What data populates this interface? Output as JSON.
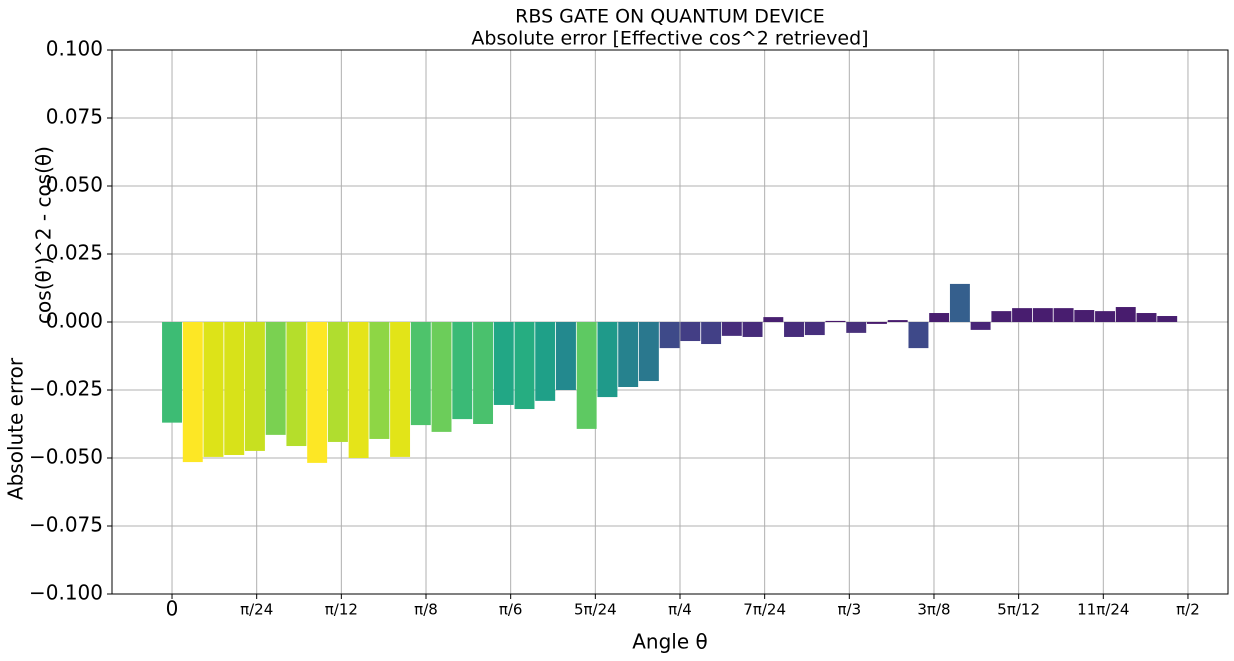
{
  "chart_data": {
    "type": "bar",
    "title": "RBS GATE ON QUANTUM DEVICE",
    "subtitle": "Absolute error [Effective cos^2 retrieved]",
    "xlabel": "Angle θ",
    "ylabel": [
      "Absolute error",
      "cos(θ')^2 - cos(θ)"
    ],
    "x": [
      0,
      0.0321,
      0.0641,
      0.0962,
      0.1282,
      0.1603,
      0.1923,
      0.2244,
      0.2565,
      0.2885,
      0.3206,
      0.3526,
      0.3847,
      0.4167,
      0.4488,
      0.4809,
      0.5129,
      0.545,
      0.577,
      0.6091,
      0.6411,
      0.6732,
      0.7053,
      0.7373,
      0.7694,
      0.8014,
      0.8335,
      0.8655,
      0.8976,
      0.9297,
      0.9617,
      0.9938,
      1.0258,
      1.0579,
      1.0899,
      1.122,
      1.1541,
      1.1861,
      1.2182,
      1.2502,
      1.2823,
      1.3143,
      1.3464,
      1.3785,
      1.4105,
      1.4426,
      1.4746,
      1.5067,
      1.5387
    ],
    "values": [
      -0.037,
      -0.0515,
      -0.0496,
      -0.0489,
      -0.0474,
      -0.0415,
      -0.0456,
      -0.0518,
      -0.0441,
      -0.05,
      -0.043,
      -0.0496,
      -0.0379,
      -0.0404,
      -0.0357,
      -0.0375,
      -0.0305,
      -0.032,
      -0.029,
      -0.025,
      -0.0393,
      -0.0276,
      -0.0239,
      -0.0217,
      -0.0096,
      -0.007,
      -0.0081,
      -0.0051,
      -0.0055,
      0.0018,
      -0.0055,
      -0.0048,
      0.0004,
      -0.004,
      -0.0007,
      0.0007,
      -0.0096,
      0.0033,
      0.014,
      -0.0029,
      0.004,
      0.0051,
      0.0051,
      0.0051,
      0.0044,
      0.004,
      0.0055,
      0.0033,
      0.0022
    ],
    "colors": [
      "#3dbc74",
      "#fde725",
      "#dde318",
      "#d8e219",
      "#c8e020",
      "#7ad151",
      "#b5de2b",
      "#fde725",
      "#b0dd2f",
      "#e5e419",
      "#8ed645",
      "#e2e418",
      "#4ec36b",
      "#6ccd5a",
      "#3aba76",
      "#4ac16d",
      "#22a785",
      "#26ad81",
      "#1fa088",
      "#23898e",
      "#5ec962",
      "#1f9a8a",
      "#26828e",
      "#2a788e",
      "#3e4a89",
      "#433e85",
      "#424086",
      "#472d7b",
      "#472c7a",
      "#481f70",
      "#472d7b",
      "#472f7d",
      "#48186a",
      "#48317b",
      "#481b6d",
      "#481c6e",
      "#3e4989",
      "#481e6f",
      "#355f8d",
      "#482677",
      "#481f70",
      "#481d6f",
      "#481d6f",
      "#481d6f",
      "#481e6f",
      "#481f70",
      "#481c6e",
      "#481e6f",
      "#481f70"
    ],
    "xlim": [
      -0.0928,
      1.6327
    ],
    "xticks": [
      0,
      {
        "value": 0.1309,
        "label": "π/24"
      },
      {
        "value": 0.2618,
        "label": "π/12"
      },
      {
        "value": 0.3927,
        "label": "π/8"
      },
      {
        "value": 0.5236,
        "label": "π/6"
      },
      {
        "value": 0.6545,
        "label": "5π/24"
      },
      {
        "value": 0.7854,
        "label": "π/4"
      },
      {
        "value": 0.9163,
        "label": "7π/24"
      },
      {
        "value": 1.0472,
        "label": "π/3"
      },
      {
        "value": 1.1781,
        "label": "3π/8"
      },
      {
        "value": 1.309,
        "label": "5π/12"
      },
      {
        "value": 1.4399,
        "label": "11π/24"
      },
      {
        "value": 1.5708,
        "label": "π/2"
      }
    ],
    "ylim": [
      -0.1,
      0.1
    ],
    "yticks": [
      {
        "value": -0.1,
        "label": "−0.100"
      },
      {
        "value": -0.075,
        "label": "−0.075"
      },
      {
        "value": -0.05,
        "label": "−0.050"
      },
      {
        "value": -0.025,
        "label": "−0.025"
      },
      {
        "value": 0,
        "label": "0.000"
      },
      {
        "value": 0.025,
        "label": "0.025"
      },
      {
        "value": 0.05,
        "label": "0.050"
      },
      {
        "value": 0.075,
        "label": "0.075"
      },
      {
        "value": 0.1,
        "label": "0.100"
      }
    ],
    "grid": true
  }
}
